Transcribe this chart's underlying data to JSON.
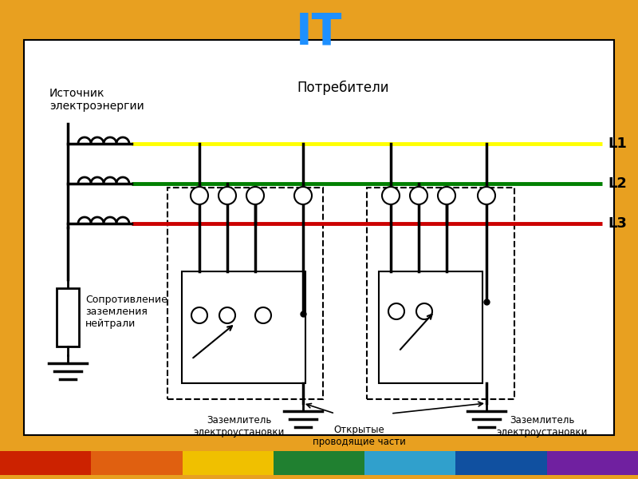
{
  "title": "IT",
  "title_color": "#1E90FF",
  "bg_color": "#E8A020",
  "diagram_bg": "#FFFFFF",
  "line_colors": {
    "L1": "#FFFF00",
    "L2": "#008000",
    "L3": "#CC0000"
  },
  "rainbow_colors": [
    "#CC2200",
    "#E06010",
    "#F0C000",
    "#208030",
    "#30A0CC",
    "#1050A0",
    "#7020A0"
  ],
  "text_source": "Источник\nэлектроэнергии",
  "text_resistance": "Сопротивление\nзаземления\nнейтрали",
  "text_consumers": "Потребители",
  "text_earth1": "Заземлитель\nэлектроустановки",
  "text_earth2": "Заземлитель\nэлектроустановки",
  "text_open_parts": "Открытые\nпроводящие части"
}
